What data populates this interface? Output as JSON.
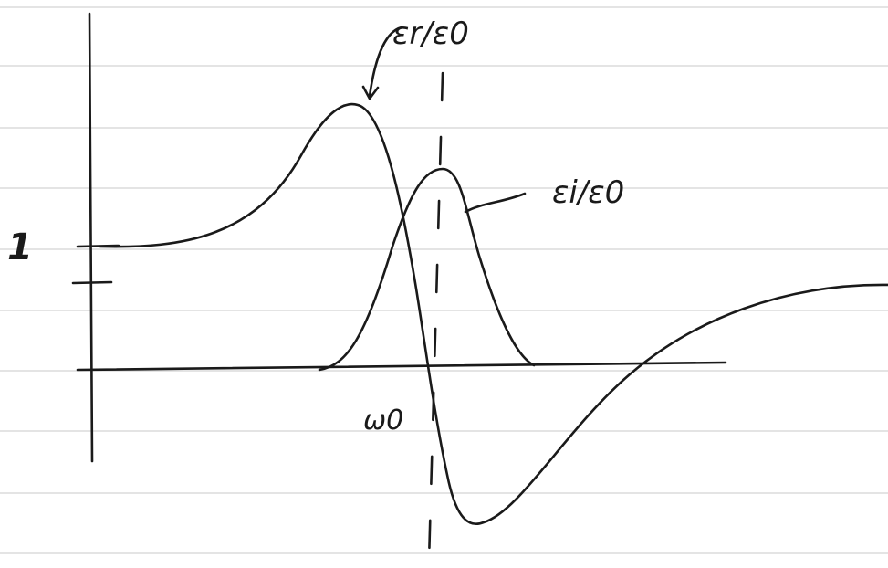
{
  "labels": {
    "real": "εr/ε0",
    "imag": "εi/ε0",
    "one": "1",
    "omega": "ω0"
  }
}
